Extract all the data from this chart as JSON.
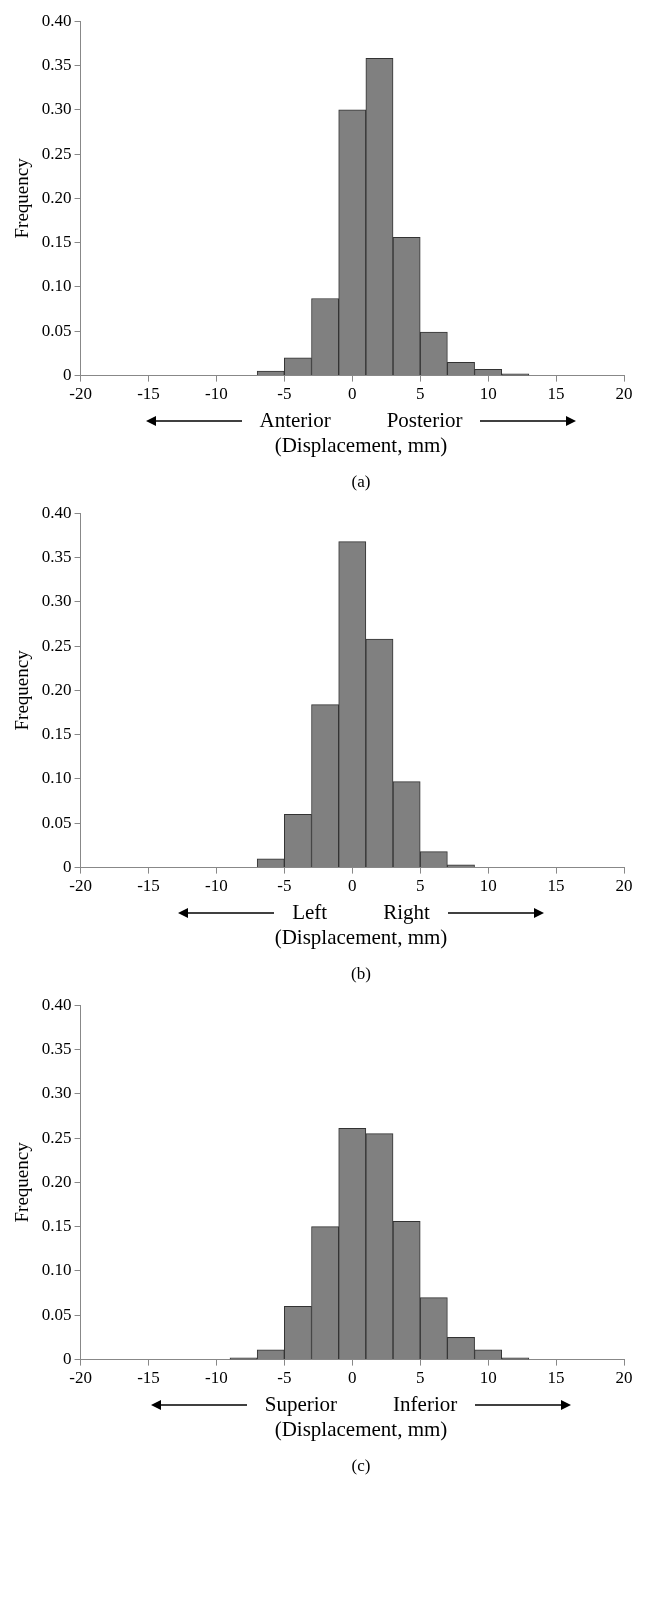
{
  "chart_data": [
    {
      "type": "histogram",
      "xlabel": "(Displacement, mm)",
      "ylabel": "Frequency",
      "color": "#808080",
      "bins": [
        -7,
        -5,
        -3,
        -1,
        1,
        3,
        5,
        7,
        9,
        11,
        13
      ],
      "values": [
        0.005,
        0.02,
        0.087,
        0.3,
        0.358,
        0.156,
        0.049,
        0.015,
        0.007,
        0.002
      ],
      "xlim": [
        -20,
        20
      ],
      "xticks": [
        -20,
        -15,
        -10,
        -5,
        0,
        5,
        10,
        15,
        20
      ],
      "ylim": [
        0,
        0.4
      ],
      "yticks": [
        0,
        0.05,
        {
          "value": 0.1,
          "label": "0.10"
        },
        0.15,
        {
          "value": 0.2,
          "label": "0.20"
        },
        0.25,
        {
          "value": 0.3,
          "label": "0.30"
        },
        0.35,
        {
          "value": 0.4,
          "label": "0.40"
        }
      ],
      "grid": false,
      "annotations": [
        "Anterior",
        "Posterior",
        "(a)"
      ]
    },
    {
      "type": "histogram",
      "xlabel": "(Displacement, mm)",
      "ylabel": "Frequency",
      "color": "#808080",
      "bins": [
        -7,
        -5,
        -3,
        -1,
        1,
        3,
        5,
        7,
        9
      ],
      "values": [
        0.01,
        0.06,
        0.184,
        0.368,
        0.258,
        0.097,
        0.018,
        0.003
      ],
      "xlim": [
        -20,
        20
      ],
      "xticks": [
        -20,
        -15,
        -10,
        -5,
        0,
        5,
        10,
        15,
        20
      ],
      "ylim": [
        0,
        0.4
      ],
      "yticks": [
        0,
        0.05,
        {
          "value": 0.1,
          "label": "0.10"
        },
        0.15,
        {
          "value": 0.2,
          "label": "0.20"
        },
        0.25,
        {
          "value": 0.3,
          "label": "0.30"
        },
        0.35,
        {
          "value": 0.4,
          "label": "0.40"
        }
      ],
      "grid": false,
      "annotations": [
        "Left",
        "Right",
        "(b)"
      ]
    },
    {
      "type": "histogram",
      "xlabel": "(Displacement, mm)",
      "ylabel": "Frequency",
      "color": "#808080",
      "bins": [
        -9,
        -7,
        -5,
        -3,
        -1,
        1,
        3,
        5,
        7,
        9,
        11,
        13
      ],
      "values": [
        0.002,
        0.011,
        0.06,
        0.15,
        0.261,
        0.255,
        0.156,
        0.07,
        0.025,
        0.011,
        0.002
      ],
      "xlim": [
        -20,
        20
      ],
      "xticks": [
        -20,
        -15,
        -10,
        -5,
        0,
        5,
        10,
        15,
        20
      ],
      "ylim": [
        0,
        0.4
      ],
      "yticks": [
        0,
        0.05,
        {
          "value": 0.1,
          "label": "0.10"
        },
        0.15,
        {
          "value": 0.2,
          "label": "0.20"
        },
        0.25,
        {
          "value": 0.3,
          "label": "0.30"
        },
        0.35,
        {
          "value": 0.4,
          "label": "0.40"
        }
      ],
      "grid": false,
      "annotations": [
        "Superior",
        "Inferior",
        "(c)"
      ]
    }
  ]
}
